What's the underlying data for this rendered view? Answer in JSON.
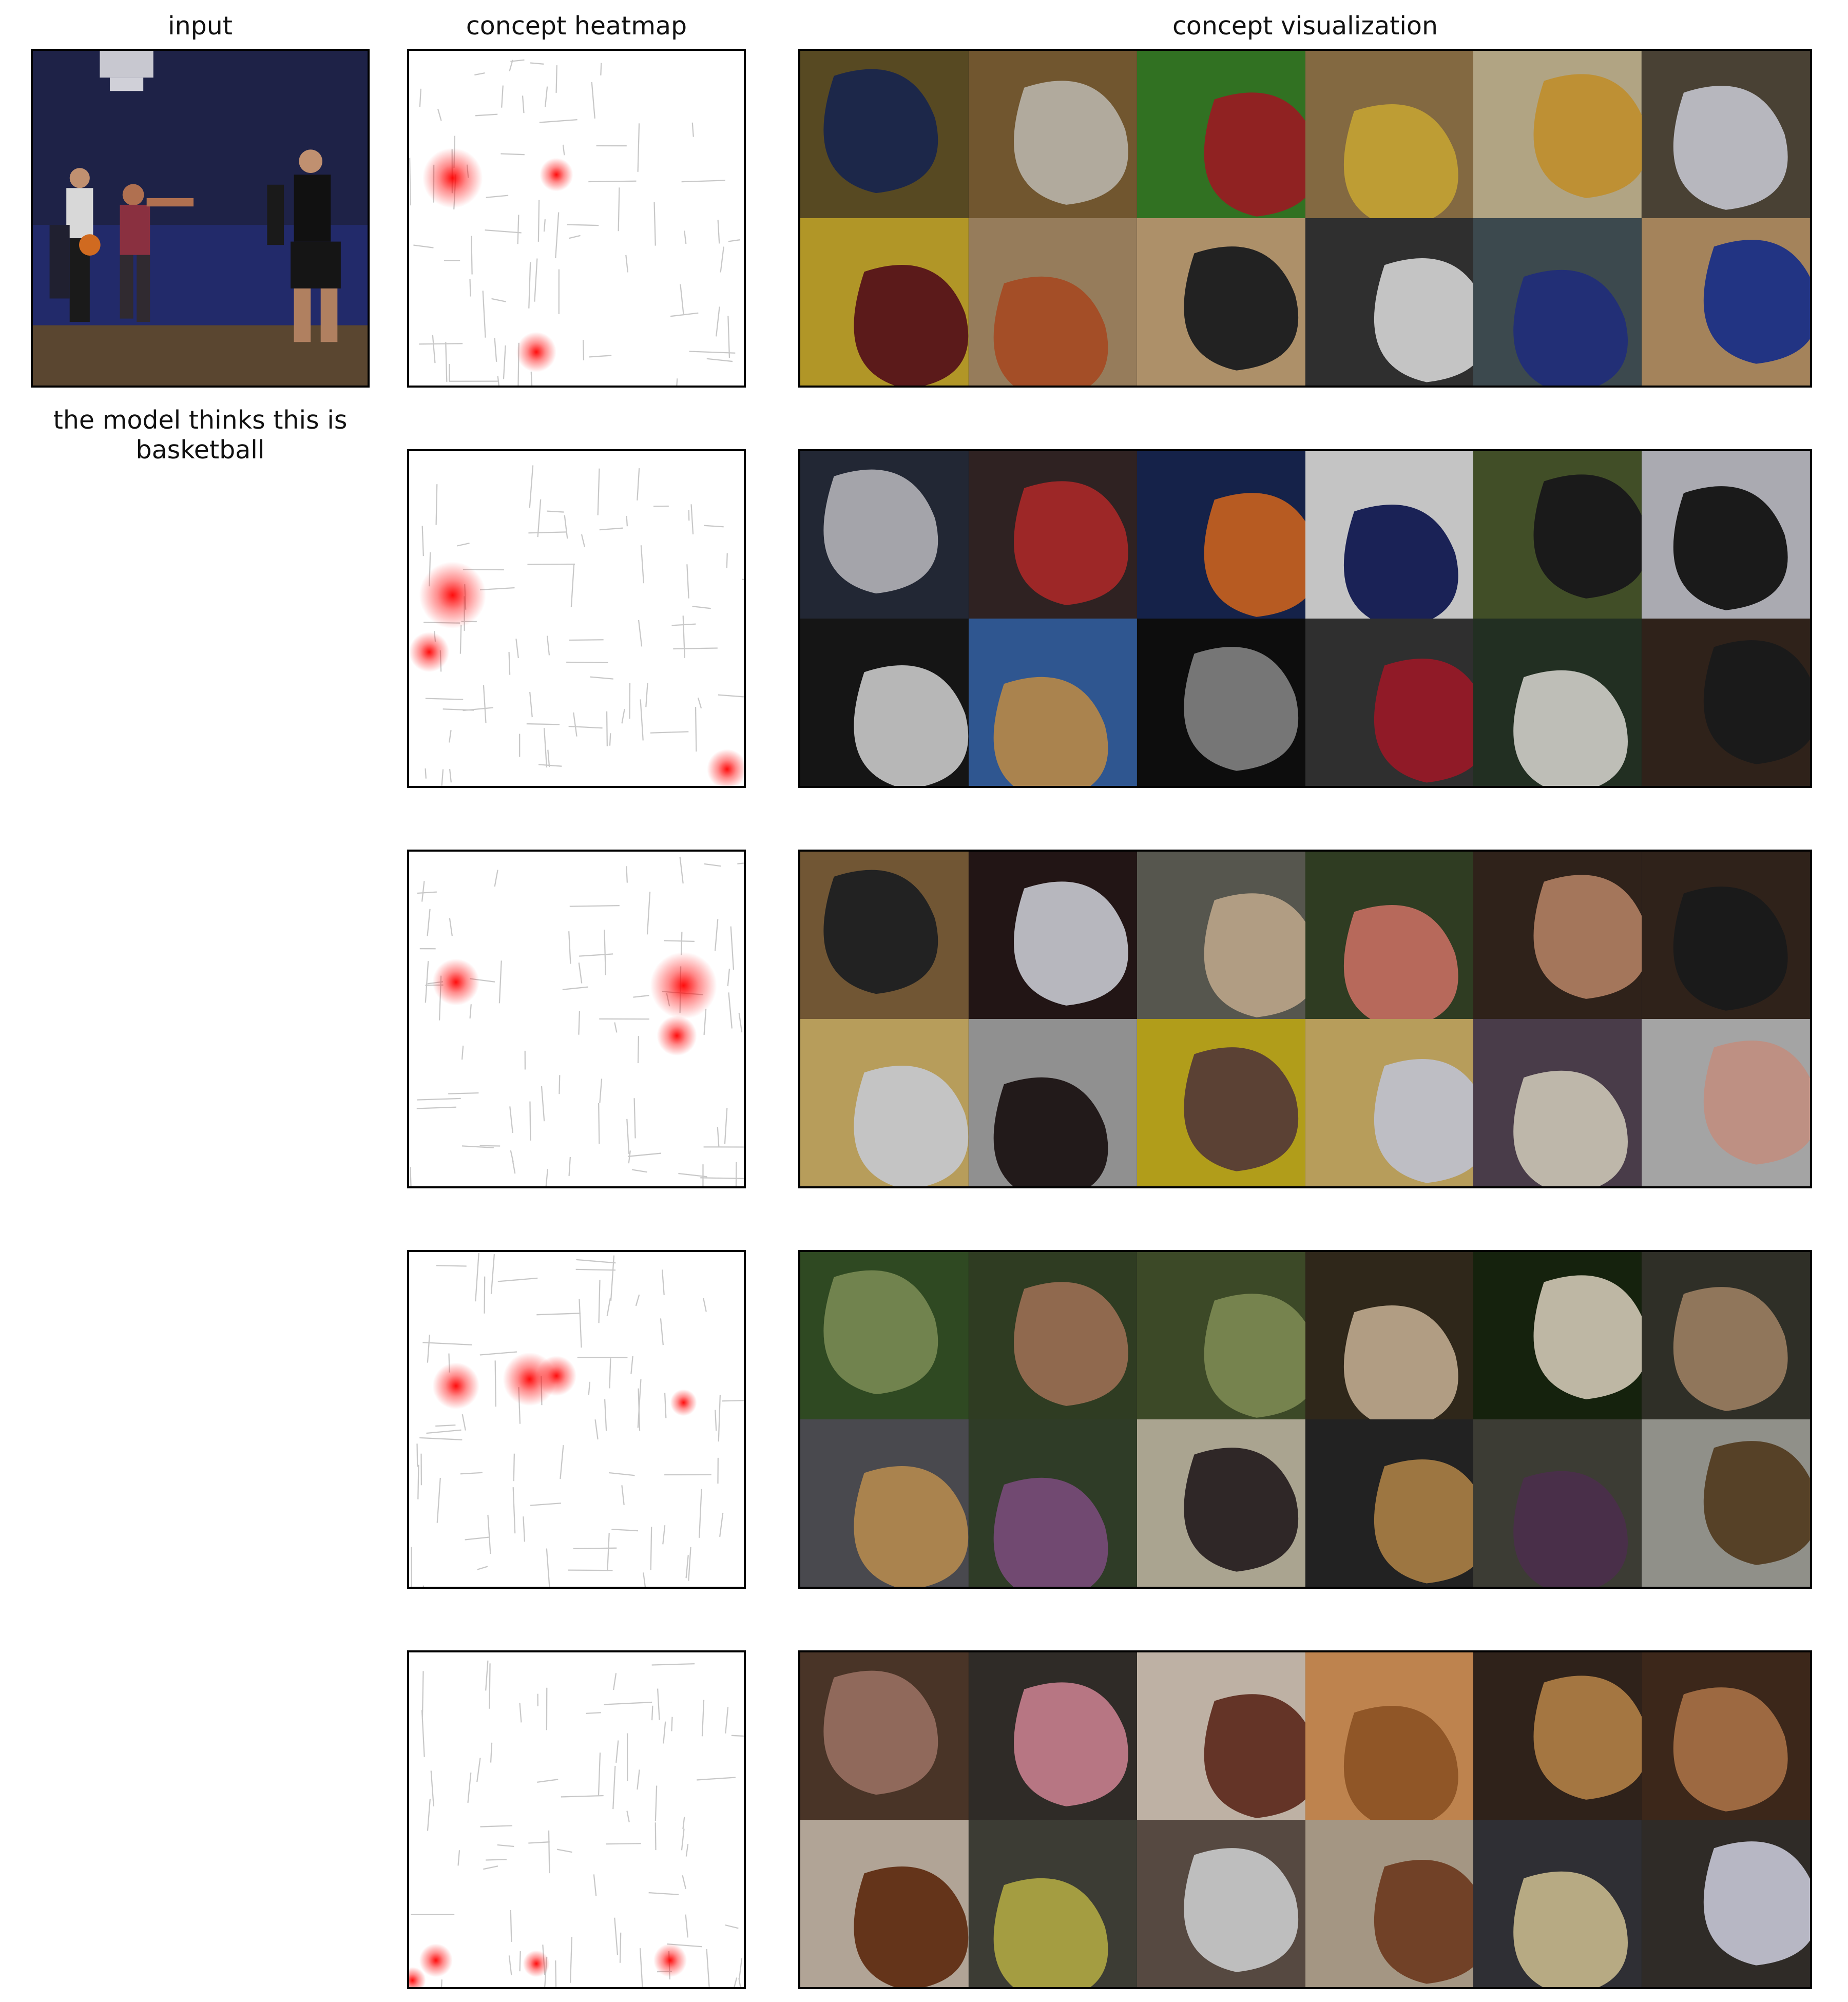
{
  "headers": {
    "input": "input",
    "heatmap": "concept heatmap",
    "visualization": "concept visualization"
  },
  "caption": "the model thinks this is basketball",
  "colors": {
    "heat": "#ff0000",
    "edge": "#c8c8c8",
    "frame": "#000000"
  },
  "concept_rows": [
    {
      "hotspots": [
        [
          0.13,
          0.38,
          0.09
        ],
        [
          0.44,
          0.37,
          0.05
        ],
        [
          0.38,
          0.9,
          0.06
        ]
      ],
      "tiles": [
        [
          "#6b5a2a",
          "#23305a"
        ],
        [
          "#8a6a3a",
          "#d8d0c0"
        ],
        [
          "#3c8a2a",
          "#b02a2a"
        ],
        [
          "#a08050",
          "#e8c040"
        ],
        [
          "#d8c8a0",
          "#e8b040"
        ],
        [
          "#5a5040",
          "#e0e0e8"
        ],
        [
          "#d8b830",
          "#702020"
        ],
        [
          "#b89870",
          "#c86030"
        ],
        [
          "#d4b080",
          "#2a2a2a"
        ],
        [
          "#3a3a3a",
          "#f0f0f0"
        ],
        [
          "#4a5a60",
          "#2a3a90"
        ],
        [
          "#c8a070",
          "#2a40a0"
        ]
      ]
    },
    {
      "hotspots": [
        [
          0.13,
          0.43,
          0.1
        ],
        [
          0.06,
          0.6,
          0.06
        ],
        [
          0.95,
          0.95,
          0.06
        ]
      ],
      "tiles": [
        [
          "#2a3040",
          "#c8c8d0"
        ],
        [
          "#3a2a2a",
          "#c03030"
        ],
        [
          "#1a2a5a",
          "#e0702a"
        ],
        [
          "#f0f0f0",
          "#202a6a"
        ],
        [
          "#506030",
          "#202020"
        ],
        [
          "#d0d0d8",
          "#202020"
        ],
        [
          "#1a1a1a",
          "#e0e0e0"
        ],
        [
          "#3a6ab0",
          "#d0a060"
        ],
        [
          "#111111",
          "#909090"
        ],
        [
          "#3a3a3a",
          "#b02030"
        ],
        [
          "#2a3a2a",
          "#e8e8e0"
        ],
        [
          "#3a2a20",
          "#202020"
        ]
      ]
    },
    {
      "hotspots": [
        [
          0.14,
          0.39,
          0.07
        ],
        [
          0.82,
          0.4,
          0.1
        ],
        [
          0.8,
          0.55,
          0.06
        ]
      ],
      "tiles": [
        [
          "#8a6a40",
          "#2a2a2a"
        ],
        [
          "#2a1a1a",
          "#e0e0e8"
        ],
        [
          "#6a6a60",
          "#d8c0a0"
        ],
        [
          "#3a4a2a",
          "#e08070"
        ],
        [
          "#3a2a20",
          "#c89070"
        ],
        [
          "#3a2a20",
          "#202020"
        ],
        [
          "#e0c070",
          "#f0f0f0"
        ],
        [
          "#b0b0b0",
          "#2a2020"
        ],
        [
          "#d8c020",
          "#705040"
        ],
        [
          "#e0c070",
          "#e8e8f0"
        ],
        [
          "#5a4a5a",
          "#e8e0d0"
        ],
        [
          "#c8c8c8",
          "#e8b0a0"
        ]
      ]
    },
    {
      "hotspots": [
        [
          0.14,
          0.4,
          0.07
        ],
        [
          0.36,
          0.38,
          0.08
        ],
        [
          0.44,
          0.37,
          0.06
        ],
        [
          0.82,
          0.45,
          0.04
        ]
      ],
      "tiles": [
        [
          "#3a5a2a",
          "#8aa060"
        ],
        [
          "#3a4a2a",
          "#b08060"
        ],
        [
          "#4a5a30",
          "#90a060"
        ],
        [
          "#3a3020",
          "#d8c0a0"
        ],
        [
          "#1a2a10",
          "#e8e0c8"
        ],
        [
          "#3a3a30",
          "#b09070"
        ],
        [
          "#5a5a60",
          "#d0a060"
        ],
        [
          "#3a4a30",
          "#8a5a8a"
        ],
        [
          "#d0c8b0",
          "#3a3030"
        ],
        [
          "#2a2a2a",
          "#c09050"
        ],
        [
          "#4a4a40",
          "#5a3a5a"
        ],
        [
          "#b0b0a8",
          "#6a5030"
        ]
      ]
    },
    {
      "hotspots": [
        [
          0.08,
          0.92,
          0.05
        ],
        [
          0.38,
          0.93,
          0.04
        ],
        [
          0.78,
          0.92,
          0.05
        ],
        [
          0.01,
          0.98,
          0.04
        ]
      ],
      "tiles": [
        [
          "#5a4030",
          "#b08070"
        ],
        [
          "#3a3530",
          "#e090a0"
        ],
        [
          "#e8d8c8",
          "#7a4030"
        ],
        [
          "#e8a060",
          "#b06a30"
        ],
        [
          "#3a2a20",
          "#c89050"
        ],
        [
          "#4a3020",
          "#c08050"
        ],
        [
          "#d8c8b8",
          "#7a4020"
        ],
        [
          "#4a4a40",
          "#c8c050"
        ],
        [
          "#6a5a50",
          "#e8e8e8"
        ],
        [
          "#c8b8a0",
          "#8a5030"
        ],
        [
          "#3a3a40",
          "#e0d0a0"
        ],
        [
          "#3a3530",
          "#e0e0f0"
        ]
      ]
    }
  ]
}
